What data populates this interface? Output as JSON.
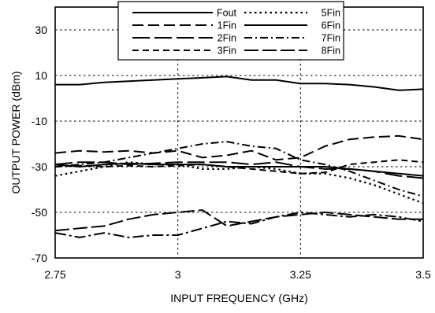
{
  "chart_data": {
    "type": "line",
    "title": "",
    "xlabel": "INPUT FREQUENCY (GHz)",
    "ylabel": "OUTPUT POWER (dBm)",
    "xlim": [
      2.75,
      3.5
    ],
    "ylim": [
      -70,
      40
    ],
    "xticks": [
      2.75,
      3,
      3.25,
      3.5
    ],
    "xtick_labels": [
      "2.75",
      "3",
      "3.25",
      "3.5"
    ],
    "yticks": [
      -70,
      -50,
      -30,
      -10,
      10,
      30
    ],
    "ytick_labels": [
      "-70",
      "-50",
      "-30",
      "-10",
      "10",
      "30"
    ],
    "grid": true,
    "legend_position": "top-center",
    "series": [
      {
        "name": "Fout",
        "style": "solid",
        "x": [
          2.75,
          2.8,
          2.85,
          2.9,
          2.95,
          3.0,
          3.05,
          3.1,
          3.15,
          3.2,
          3.25,
          3.3,
          3.35,
          3.4,
          3.45,
          3.5
        ],
        "y": [
          6,
          6,
          7,
          7.5,
          8,
          8.5,
          9,
          9.5,
          8,
          8,
          6.5,
          6.5,
          6,
          5,
          3.5,
          4
        ]
      },
      {
        "name": "1Fin",
        "style": "dash",
        "x": [
          2.75,
          2.8,
          2.85,
          2.9,
          2.95,
          3.0,
          3.05,
          3.1,
          3.15,
          3.2,
          3.25,
          3.3,
          3.35,
          3.4,
          3.45,
          3.5
        ],
        "y": [
          -24,
          -23,
          -23.5,
          -23,
          -24,
          -23,
          -26,
          -25,
          -23,
          -27,
          -26,
          -21,
          -18,
          -17,
          -16.5,
          -18
        ]
      },
      {
        "name": "2Fin",
        "style": "longdash",
        "x": [
          2.75,
          2.8,
          2.85,
          2.9,
          2.95,
          3.0,
          3.05,
          3.1,
          3.15,
          3.2,
          3.25,
          3.3,
          3.35,
          3.4,
          3.45,
          3.5
        ],
        "y": [
          -29,
          -28,
          -28,
          -29,
          -28.5,
          -28,
          -28,
          -28,
          -29,
          -28,
          -30,
          -31,
          -31,
          -32,
          -34,
          -35
        ]
      },
      {
        "name": "3Fin",
        "style": "dash-small",
        "x": [
          2.75,
          2.8,
          2.85,
          2.9,
          2.95,
          3.0,
          3.05,
          3.1,
          3.15,
          3.2,
          3.25,
          3.3,
          3.35,
          3.4,
          3.45,
          3.5
        ],
        "y": [
          -30,
          -29.5,
          -30,
          -29.5,
          -30,
          -29.5,
          -29,
          -30,
          -31,
          -32,
          -33,
          -32.5,
          -29,
          -28,
          -27,
          -28
        ]
      },
      {
        "name": "5Fin",
        "style": "dot",
        "x": [
          2.75,
          2.8,
          2.85,
          2.9,
          2.95,
          3.0,
          3.05,
          3.1,
          3.15,
          3.2,
          3.25,
          3.3,
          3.35,
          3.4,
          3.45,
          3.5
        ],
        "y": [
          -34,
          -32,
          -30,
          -28,
          -29,
          -29,
          -31,
          -31,
          -30,
          -31,
          -33,
          -33,
          -35,
          -38,
          -42,
          -46
        ]
      },
      {
        "name": "6Fin",
        "style": "solid",
        "x": [
          2.75,
          2.8,
          2.85,
          2.9,
          2.95,
          3.0,
          3.05,
          3.1,
          3.15,
          3.2,
          3.25,
          3.3,
          3.35,
          3.4,
          3.45,
          3.5
        ],
        "y": [
          -29,
          -30,
          -29,
          -28.5,
          -29,
          -29,
          -29,
          -30,
          -30,
          -30,
          -30,
          -30,
          -31,
          -32,
          -33,
          -34
        ]
      },
      {
        "name": "7Fin",
        "style": "dashdot",
        "x": [
          2.75,
          2.8,
          2.85,
          2.9,
          2.95,
          3.0,
          3.05,
          3.1,
          3.15,
          3.2,
          3.25,
          3.3,
          3.35,
          3.4,
          3.45,
          3.5
        ],
        "y": [
          -30,
          -29,
          -28,
          -26,
          -24,
          -22,
          -20,
          -19,
          -21,
          -22,
          -27,
          -29,
          -32,
          -36,
          -40,
          -43
        ]
      },
      {
        "name": "8Fin",
        "style": "longdash-short",
        "x": [
          2.75,
          2.8,
          2.85,
          2.9,
          2.95,
          3.0,
          3.05,
          3.1,
          3.15,
          3.2,
          3.25,
          3.3,
          3.35,
          3.4,
          3.45,
          3.5
        ],
        "y": [
          -58,
          -57,
          -56,
          -53,
          -51,
          -50,
          -49,
          -56,
          -54,
          -52,
          -51,
          -50,
          -51,
          -52,
          -53,
          -53
        ]
      },
      {
        "name": "",
        "style": "dashdot-long",
        "x": [
          2.75,
          2.8,
          2.85,
          2.9,
          2.95,
          3.0,
          3.05,
          3.1,
          3.15,
          3.2,
          3.25,
          3.3,
          3.35,
          3.4,
          3.45,
          3.5
        ],
        "y": [
          -59,
          -61,
          -59,
          -61,
          -60,
          -60,
          -57,
          -54,
          -55,
          -52,
          -50,
          -51,
          -52,
          -51,
          -52,
          -54
        ]
      }
    ]
  }
}
